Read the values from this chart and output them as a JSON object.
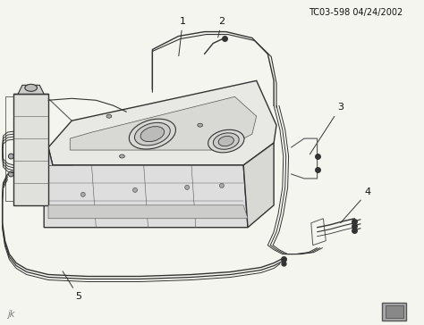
{
  "title": "TC03-598 04/24/2002",
  "bg_color": "#f5f5f0",
  "line_color": "#555555",
  "dark_color": "#333333",
  "label_color": "#111111",
  "fig_width": 4.74,
  "fig_height": 3.64,
  "dpi": 100,
  "part_labels": [
    "1",
    "2",
    "3",
    "4",
    "5"
  ],
  "title_fontsize": 7,
  "label_fontsize": 8,
  "watermark_text": "jk",
  "icon_box_color": "#999999"
}
